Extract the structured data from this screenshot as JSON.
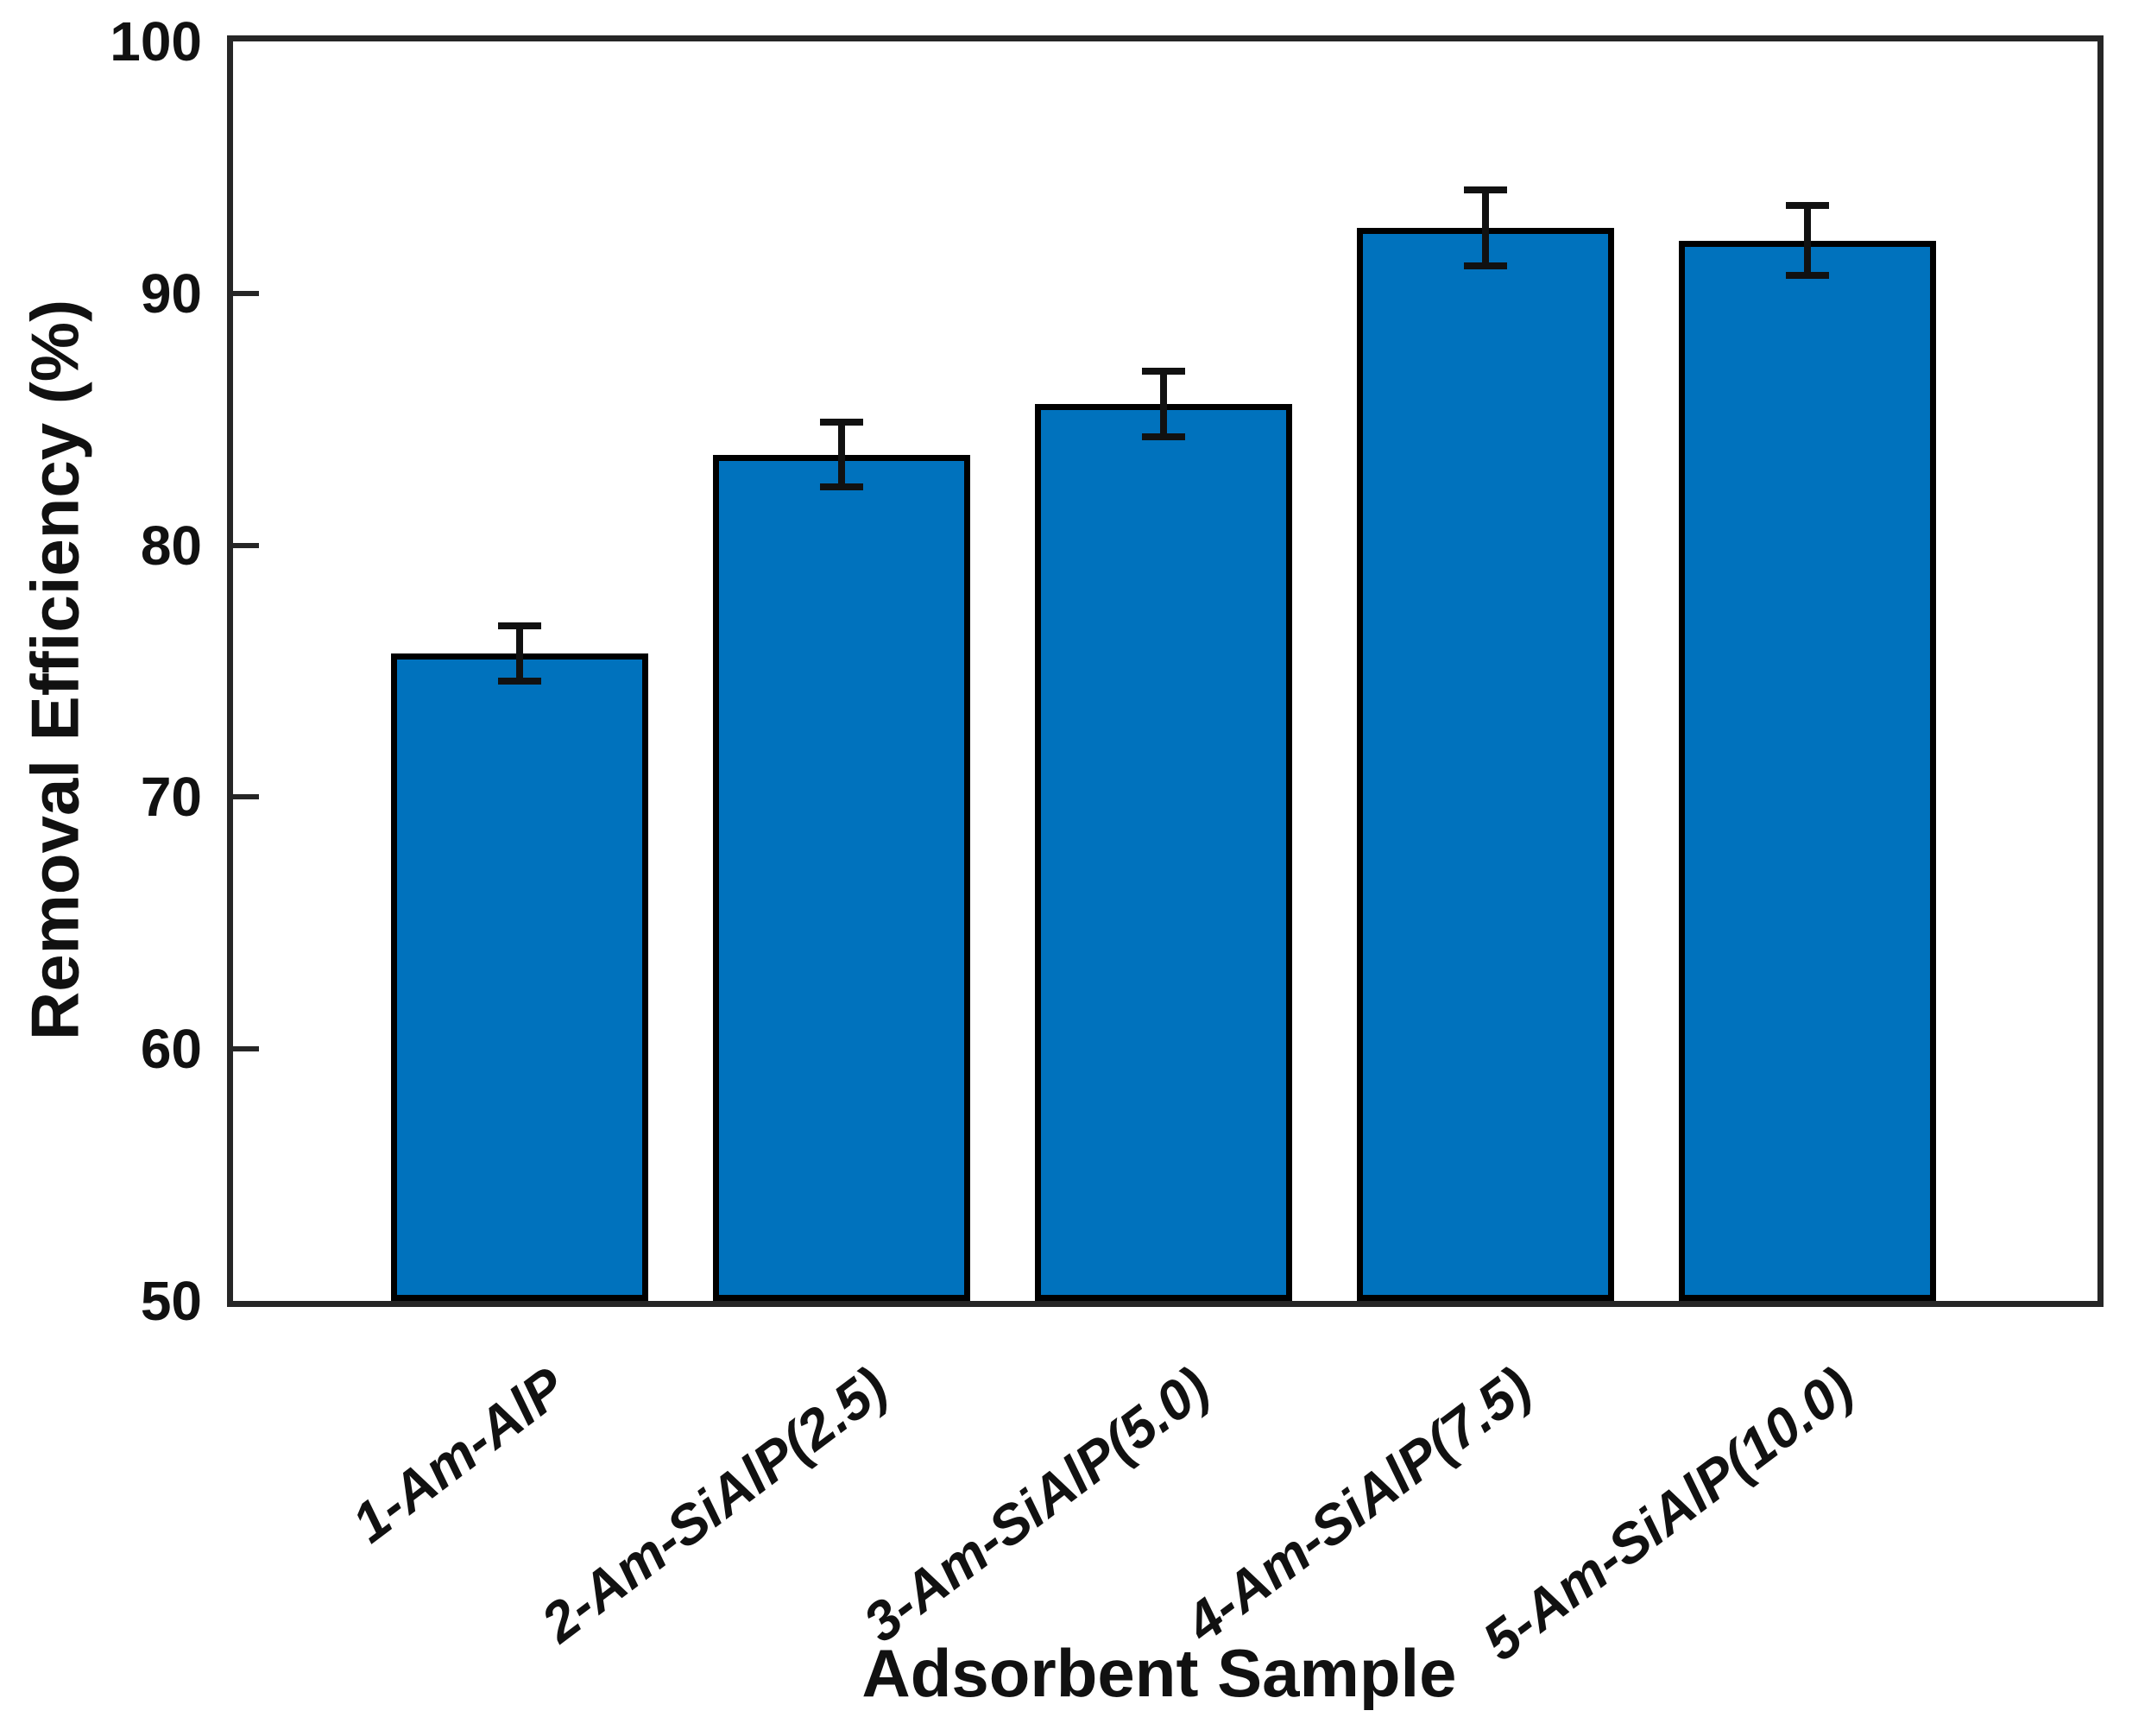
{
  "figure": {
    "background": "#ffffff",
    "axis_color": "#262626",
    "text_color": "#111111"
  },
  "chart_data": {
    "type": "bar",
    "title": "",
    "xlabel": "Adsorbent Sample",
    "ylabel": "Removal Efficiency (%)",
    "categories": [
      "1-Am-AlP",
      "2-Am-SiAlP(2.5)",
      "3-Am-SiAlP(5.0)",
      "4-Am-SiAlP(7.5)",
      "5-Am-SiAlP(10.0)"
    ],
    "values": [
      75.7,
      83.6,
      85.6,
      92.6,
      92.1
    ],
    "errors": [
      1.1,
      1.3,
      1.3,
      1.5,
      1.4
    ],
    "bar_color": "#0072BD",
    "bar_edge_color": "#000000",
    "error_color": "#111111",
    "ylim": [
      50,
      100
    ],
    "yticks": [
      50,
      60,
      70,
      80,
      90,
      100
    ],
    "xlim": [
      0.11,
      5.9
    ],
    "bar_width": 0.8,
    "grid": false,
    "legend": null,
    "tick_direction": "in",
    "tick_label_rotation_deg": 37
  }
}
